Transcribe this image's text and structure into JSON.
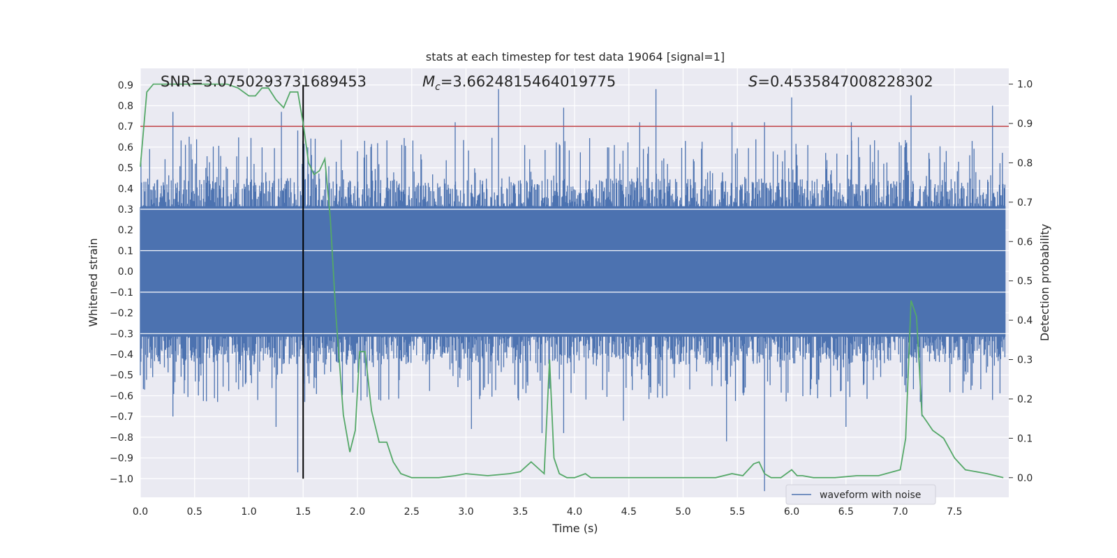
{
  "chart_data": {
    "type": "line",
    "title": "stats at each timestep for test data 19064 [signal=1]",
    "xlabel": "Time (s)",
    "ylabel": "Whitened strain",
    "y2label": "Detection probability",
    "xlim": [
      0.0,
      8.0
    ],
    "ylim": [
      -1.09,
      0.98
    ],
    "y2lim": [
      -0.05,
      1.04
    ],
    "xticks": [
      "0.0",
      "0.5",
      "1.0",
      "1.5",
      "2.0",
      "2.5",
      "3.0",
      "3.5",
      "4.0",
      "4.5",
      "5.0",
      "5.5",
      "6.0",
      "6.5",
      "7.0",
      "7.5"
    ],
    "yticks": [
      "0.9",
      "0.8",
      "0.7",
      "0.6",
      "0.5",
      "0.4",
      "0.3",
      "0.2",
      "0.1",
      "0.0",
      "-0.1",
      "-0.2",
      "-0.3",
      "-0.4",
      "-0.5",
      "-0.6",
      "-0.7",
      "-0.8",
      "-0.9",
      "-1.0"
    ],
    "y2ticks": [
      "1.0",
      "0.9",
      "0.8",
      "0.7",
      "0.6",
      "0.5",
      "0.4",
      "0.3",
      "0.2",
      "0.1",
      "0.0"
    ],
    "threshold": 0.7,
    "marker_time": 1.5,
    "annotations": {
      "snr": "SNR=3.0750293731689453",
      "mc": "=3.6624815464019775",
      "s": "=0.4535847008228302"
    },
    "legend": {
      "label": "waveform with noise",
      "placement": "lower right"
    },
    "grid": true,
    "series": [
      {
        "name": "waveform with noise",
        "axis": "left",
        "style": "dense noise",
        "envelope_band": [
          -0.45,
          0.45
        ],
        "spikes_up": [
          [
            0.3,
            0.77
          ],
          [
            0.45,
            0.65
          ],
          [
            1.3,
            0.77
          ],
          [
            1.45,
            0.68
          ],
          [
            2.0,
            0.58
          ],
          [
            2.9,
            0.72
          ],
          [
            3.3,
            0.88
          ],
          [
            3.9,
            0.79
          ],
          [
            4.6,
            0.72
          ],
          [
            4.75,
            0.88
          ],
          [
            5.45,
            0.72
          ],
          [
            5.75,
            0.72
          ],
          [
            6.0,
            0.84
          ],
          [
            6.55,
            0.72
          ],
          [
            7.1,
            0.85
          ],
          [
            7.85,
            0.8
          ]
        ],
        "spikes_down": [
          [
            0.3,
            -0.7
          ],
          [
            1.25,
            -0.75
          ],
          [
            1.45,
            -0.97
          ],
          [
            1.5,
            -0.87
          ],
          [
            3.05,
            -0.76
          ],
          [
            3.7,
            -0.78
          ],
          [
            3.9,
            -0.78
          ],
          [
            4.45,
            -0.72
          ],
          [
            5.4,
            -0.82
          ],
          [
            5.75,
            -1.06
          ],
          [
            6.5,
            -0.75
          ],
          [
            7.2,
            -0.7
          ],
          [
            7.85,
            -0.62
          ]
        ]
      },
      {
        "name": "",
        "axis": "right",
        "x": [
          0.0,
          0.06,
          0.12,
          0.2,
          0.3,
          0.5,
          0.8,
          0.9,
          1.0,
          1.06,
          1.12,
          1.18,
          1.25,
          1.32,
          1.38,
          1.45,
          1.5,
          1.55,
          1.6,
          1.65,
          1.7,
          1.75,
          1.8,
          1.87,
          1.93,
          1.98,
          2.02,
          2.07,
          2.13,
          2.2,
          2.27,
          2.33,
          2.4,
          2.5,
          2.75,
          2.9,
          3.0,
          3.2,
          3.4,
          3.5,
          3.6,
          3.68,
          3.72,
          3.77,
          3.81,
          3.86,
          3.93,
          4.0,
          4.1,
          4.15,
          4.3,
          4.5,
          5.0,
          5.3,
          5.45,
          5.55,
          5.65,
          5.7,
          5.75,
          5.81,
          5.9,
          6.0,
          6.05,
          6.1,
          6.2,
          6.4,
          6.6,
          6.8,
          7.0,
          7.05,
          7.1,
          7.15,
          7.2,
          7.25,
          7.3,
          7.4,
          7.5,
          7.6,
          7.8,
          7.95
        ],
        "y": [
          0.79,
          0.98,
          1.0,
          1.0,
          1.0,
          1.0,
          1.0,
          0.99,
          0.97,
          0.97,
          0.99,
          0.99,
          0.96,
          0.94,
          0.98,
          0.98,
          0.9,
          0.8,
          0.77,
          0.78,
          0.81,
          0.66,
          0.42,
          0.16,
          0.065,
          0.12,
          0.32,
          0.32,
          0.17,
          0.09,
          0.09,
          0.04,
          0.01,
          0.0,
          0.0,
          0.005,
          0.01,
          0.005,
          0.01,
          0.015,
          0.04,
          0.02,
          0.01,
          0.3,
          0.05,
          0.01,
          0.0,
          0.0,
          0.01,
          0.0,
          0.0,
          0.0,
          0.0,
          0.0,
          0.01,
          0.005,
          0.035,
          0.04,
          0.01,
          0.0,
          0.0,
          0.02,
          0.005,
          0.005,
          0.0,
          0.0,
          0.005,
          0.005,
          0.02,
          0.1,
          0.45,
          0.41,
          0.16,
          0.14,
          0.12,
          0.1,
          0.05,
          0.02,
          0.01,
          0.0
        ]
      }
    ]
  }
}
